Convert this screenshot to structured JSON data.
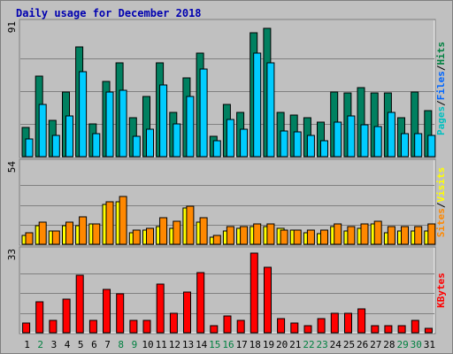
{
  "chart_data": {
    "type": "bar",
    "title": "Daily usage for December 2018",
    "x": [
      "1",
      "2",
      "3",
      "4",
      "5",
      "6",
      "7",
      "8",
      "9",
      "10",
      "11",
      "12",
      "13",
      "14",
      "15",
      "16",
      "17",
      "18",
      "19",
      "20",
      "21",
      "22",
      "23",
      "24",
      "25",
      "26",
      "27",
      "28",
      "29",
      "30",
      "31"
    ],
    "weekend": [
      false,
      true,
      false,
      false,
      false,
      false,
      false,
      true,
      true,
      false,
      false,
      false,
      false,
      false,
      true,
      true,
      false,
      false,
      false,
      false,
      false,
      true,
      true,
      false,
      false,
      false,
      false,
      false,
      true,
      true,
      false
    ],
    "panels": [
      {
        "ymax": 91,
        "ymax_label": "91",
        "legend": [
          "Pages",
          "Files",
          "Hits"
        ],
        "legend_colors": [
          "#00c0c0",
          "#0066ff",
          "#008040"
        ],
        "series": [
          {
            "name": "Hits",
            "color": "#008060",
            "values": [
              20,
              56,
              25,
              45,
              76,
              23,
              52,
              65,
              27,
              42,
              65,
              31,
              55,
              72,
              14,
              36,
              31,
              86,
              89,
              31,
              29,
              27,
              24,
              45,
              44,
              48,
              44,
              44,
              27,
              45,
              32
            ]
          },
          {
            "name": "Files",
            "color": "#00ccff",
            "values": [
              12,
              36,
              15,
              28,
              59,
              16,
              45,
              46,
              14,
              19,
              50,
              23,
              42,
              61,
              11,
              26,
              19,
              72,
              65,
              18,
              17,
              15,
              11,
              24,
              28,
              22,
              21,
              31,
              16,
              16,
              15
            ]
          }
        ]
      },
      {
        "ymax": 54,
        "ymax_label": "54",
        "legend": [
          "Sites",
          "Visits"
        ],
        "legend_colors": [
          "#ff8800",
          "#ffff00"
        ],
        "series": [
          {
            "name": "Visits",
            "color": "#ffff00",
            "values": [
              6,
              13,
              9,
              13,
              13,
              14,
              27,
              29,
              8,
              10,
              12,
              11,
              25,
              15,
              5,
              9,
              11,
              12,
              12,
              11,
              10,
              8,
              7,
              12,
              9,
              11,
              14,
              8,
              9,
              9,
              9
            ]
          },
          {
            "name": "Sites",
            "color": "#ff8800",
            "values": [
              8,
              15,
              9,
              15,
              19,
              14,
              29,
              33,
              10,
              11,
              18,
              16,
              26,
              18,
              6,
              12,
              12,
              14,
              14,
              10,
              10,
              10,
              10,
              14,
              12,
              14,
              16,
              12,
              12,
              12,
              14
            ]
          }
        ]
      },
      {
        "ymax": 33,
        "ymax_label": "33",
        "legend": [
          "KBytes"
        ],
        "legend_colors": [
          "#ff0000"
        ],
        "series": [
          {
            "name": "KBytes",
            "color": "#ff0000",
            "values": [
              4,
              13,
              5,
              14,
              24,
              5,
              18,
              16,
              5,
              5,
              20,
              8,
              17,
              25,
              3,
              7,
              5,
              33,
              27,
              6,
              4,
              3,
              6,
              8,
              8,
              10,
              3,
              3,
              3,
              5,
              2
            ]
          }
        ]
      }
    ]
  },
  "colors": {
    "title": "#0000b0",
    "day_weekday": "#000000",
    "day_weekend": "#008040",
    "legend_separator": "#000000",
    "axis_label": "#000000"
  }
}
